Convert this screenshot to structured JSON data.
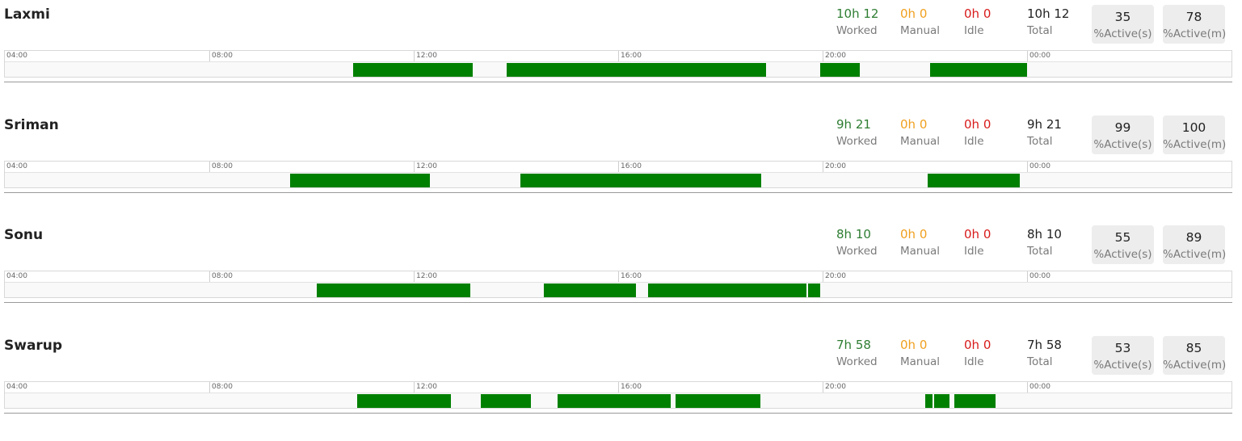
{
  "labels": {
    "worked": "Worked",
    "manual": "Manual",
    "idle": "Idle",
    "total": "Total",
    "active_s": "%Active(s)",
    "active_m": "%Active(m)"
  },
  "colors": {
    "worked": "#2e7d32",
    "manual": "#f0a020",
    "idle": "#d81b1b",
    "segment": "#008000"
  },
  "timeline_ticks": [
    "04:00",
    "08:00",
    "12:00",
    "16:00",
    "20:00",
    "00:00"
  ],
  "timeline_range_hours": {
    "start": 4,
    "end": 28
  },
  "users": [
    {
      "name": "Laxmi",
      "worked": "10h 12",
      "manual": "0h 0",
      "idle": "0h 0",
      "total": "10h 12",
      "active_s": "35",
      "active_m": "78",
      "segments": [
        [
          10.82,
          13.15
        ],
        [
          13.82,
          18.9
        ],
        [
          19.95,
          20.72
        ],
        [
          22.1,
          24.0
        ]
      ]
    },
    {
      "name": "Sriman",
      "worked": "9h 21",
      "manual": "0h 0",
      "idle": "0h 0",
      "total": "9h 21",
      "active_s": "99",
      "active_m": "100",
      "segments": [
        [
          9.58,
          12.32
        ],
        [
          14.08,
          18.8
        ],
        [
          22.05,
          23.85
        ]
      ]
    },
    {
      "name": "Sonu",
      "worked": "8h 10",
      "manual": "0h 0",
      "idle": "0h 0",
      "total": "8h 10",
      "active_s": "55",
      "active_m": "89",
      "segments": [
        [
          10.1,
          13.1
        ],
        [
          14.55,
          16.35
        ],
        [
          16.58,
          19.68
        ],
        [
          19.72,
          19.95
        ]
      ]
    },
    {
      "name": "Swarup",
      "worked": "7h 58",
      "manual": "0h 0",
      "idle": "0h 0",
      "total": "7h 58",
      "active_s": "53",
      "active_m": "85",
      "segments": [
        [
          10.9,
          12.72
        ],
        [
          13.32,
          14.3
        ],
        [
          14.82,
          17.02
        ],
        [
          17.12,
          18.78
        ],
        [
          22.0,
          22.15
        ],
        [
          22.18,
          22.48
        ],
        [
          22.58,
          23.38
        ]
      ]
    }
  ]
}
